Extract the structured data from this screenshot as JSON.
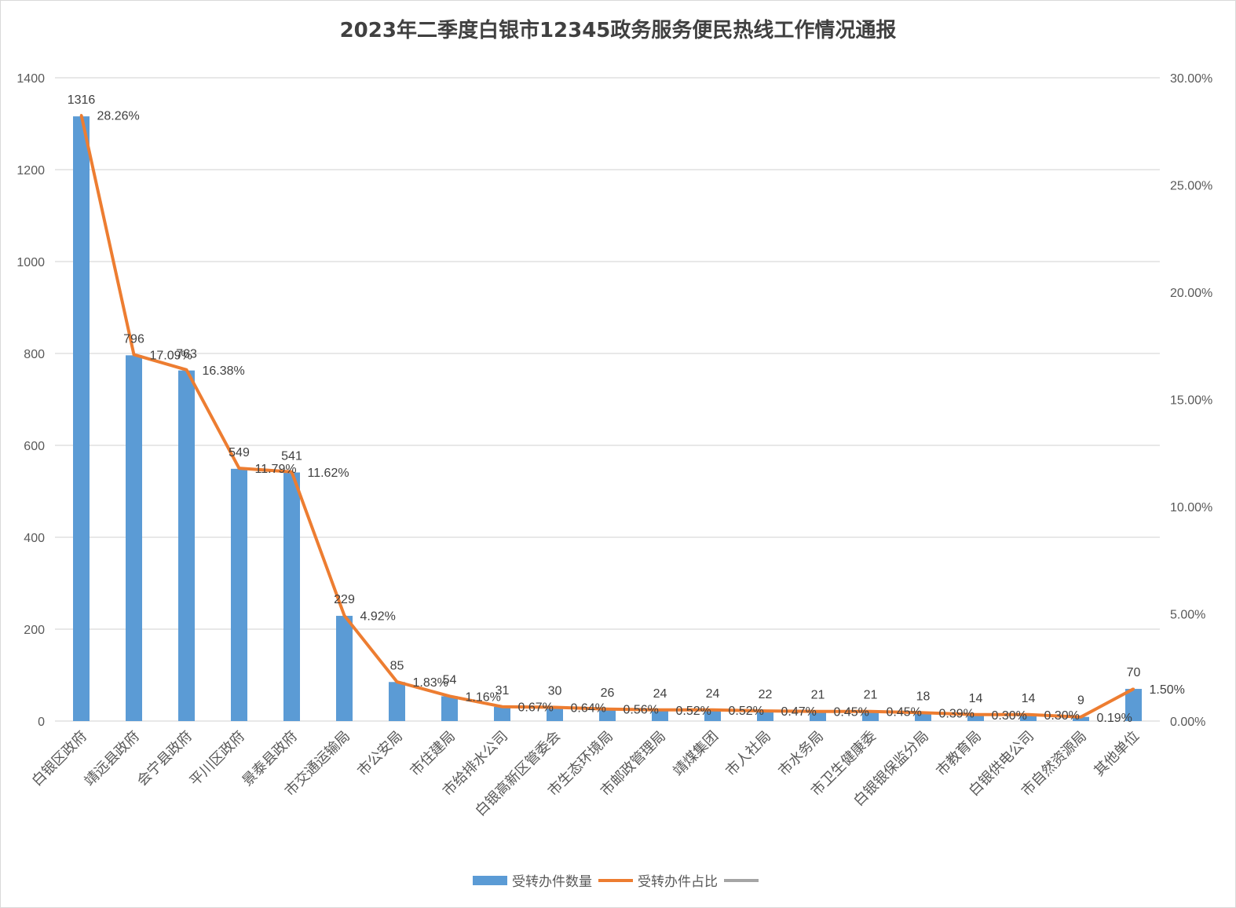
{
  "title": "2023年二季度白银市12345政务服务便民热线工作情况通报",
  "colors": {
    "bar": "#5b9bd5",
    "line": "#ed7d31",
    "third": "#a5a5a5",
    "grid": "#d9d9d9"
  },
  "legend": {
    "bar_label": "受转办件数量",
    "line_label": "受转办件占比",
    "third_label": ""
  },
  "y_left_ticks": [
    "0",
    "200",
    "400",
    "600",
    "800",
    "1000",
    "1200",
    "1400"
  ],
  "y_right_ticks": [
    "0.00%",
    "5.00%",
    "10.00%",
    "15.00%",
    "20.00%",
    "25.00%",
    "30.00%"
  ],
  "chart_data": {
    "type": "bar",
    "title": "2023年二季度白银市12345政务服务便民热线工作情况通报",
    "categories": [
      "白银区政府",
      "靖远县政府",
      "会宁县政府",
      "平川区政府",
      "景泰县政府",
      "市交通运输局",
      "市公安局",
      "市住建局",
      "市给排水公司",
      "白银高新区管委会",
      "市生态环境局",
      "市邮政管理局",
      "靖煤集团",
      "市人社局",
      "市水务局",
      "市卫生健康委",
      "白银银保监分局",
      "市教育局",
      "白银供电公司",
      "市自然资源局",
      "其他单位"
    ],
    "series": [
      {
        "name": "受转办件数量",
        "type": "bar",
        "axis": "left",
        "values": [
          1316,
          796,
          763,
          549,
          541,
          229,
          85,
          54,
          31,
          30,
          26,
          24,
          24,
          22,
          21,
          21,
          18,
          14,
          14,
          9,
          70
        ]
      },
      {
        "name": "受转办件占比",
        "type": "line",
        "axis": "right",
        "values": [
          28.26,
          17.09,
          16.38,
          11.79,
          11.62,
          4.92,
          1.83,
          1.16,
          0.67,
          0.64,
          0.56,
          0.52,
          0.52,
          0.47,
          0.45,
          0.45,
          0.39,
          0.3,
          0.3,
          0.19,
          1.5
        ],
        "labels": [
          "28.26%",
          "17.09%",
          "16.38%",
          "11.79%",
          "11.62%",
          "4.92%",
          "1.83%",
          "1.16%",
          "0.67%",
          "0.64%",
          "0.56%",
          "0.52%",
          "0.52%",
          "0.47%",
          "0.45%",
          "0.45%",
          "0.39%",
          "0.30%",
          "0.30%",
          "0.19%",
          "1.50%"
        ]
      }
    ],
    "ylim_left": [
      0,
      1400
    ],
    "ylim_right": [
      0,
      30
    ],
    "grid": true,
    "legend_position": "bottom"
  }
}
